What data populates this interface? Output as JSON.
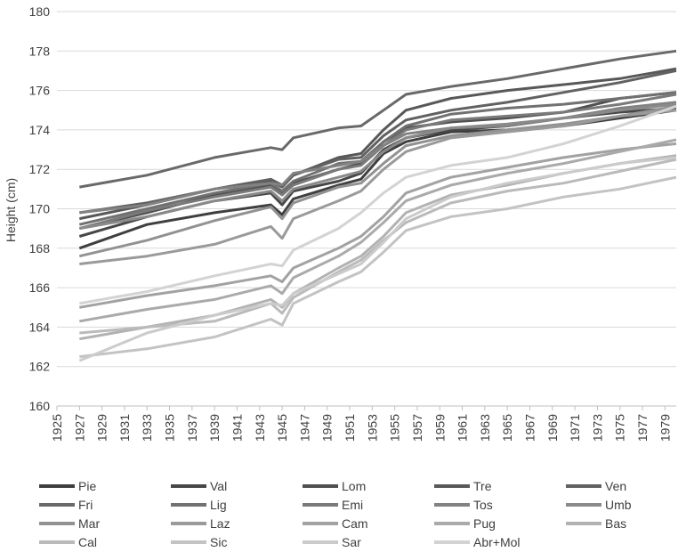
{
  "chart_data": {
    "type": "line",
    "title": "",
    "xlabel": "",
    "ylabel": "Height (cm)",
    "ylim": [
      160,
      180
    ],
    "yticks": [
      160,
      162,
      164,
      166,
      168,
      170,
      172,
      174,
      176,
      178,
      180
    ],
    "xlim": [
      1925,
      1980
    ],
    "xticks": [
      1925,
      1927,
      1929,
      1931,
      1933,
      1935,
      1937,
      1939,
      1941,
      1943,
      1945,
      1947,
      1949,
      1951,
      1953,
      1955,
      1957,
      1959,
      1961,
      1963,
      1965,
      1967,
      1969,
      1971,
      1973,
      1975,
      1977,
      1979
    ],
    "grid": "horizontal",
    "legend_position": "bottom",
    "x": [
      1927,
      1933,
      1939,
      1944,
      1945,
      1946,
      1950,
      1952,
      1954,
      1956,
      1960,
      1965,
      1970,
      1975,
      1980
    ],
    "series": [
      {
        "name": "Pie",
        "color": "#3f3f3f",
        "values": [
          168.0,
          169.2,
          169.8,
          170.2,
          169.7,
          170.5,
          171.2,
          171.5,
          172.8,
          173.4,
          173.9,
          174.0,
          174.2,
          174.6,
          175.0
        ]
      },
      {
        "name": "Val",
        "color": "#474747",
        "values": [
          168.6,
          169.6,
          170.4,
          170.8,
          170.2,
          170.9,
          171.4,
          171.8,
          173.0,
          173.6,
          174.0,
          174.2,
          174.6,
          174.9,
          175.1
        ]
      },
      {
        "name": "Lom",
        "color": "#4f4f4f",
        "values": [
          169.0,
          169.8,
          170.7,
          171.2,
          170.8,
          171.3,
          172.0,
          172.3,
          173.4,
          174.1,
          174.4,
          174.6,
          174.9,
          175.6,
          175.9
        ]
      },
      {
        "name": "Tre",
        "color": "#585858",
        "values": [
          169.5,
          170.2,
          171.0,
          171.4,
          171.1,
          171.7,
          172.6,
          172.8,
          174.0,
          175.0,
          175.6,
          176.0,
          176.3,
          176.6,
          177.1
        ]
      },
      {
        "name": "Ven",
        "color": "#616161",
        "values": [
          169.8,
          170.3,
          171.0,
          171.5,
          171.2,
          171.7,
          172.5,
          172.6,
          173.7,
          174.5,
          175.0,
          175.4,
          175.9,
          176.4,
          177.0
        ]
      },
      {
        "name": "Fri",
        "color": "#696969",
        "values": [
          171.1,
          171.7,
          172.6,
          173.1,
          173.0,
          173.6,
          174.1,
          174.2,
          175.0,
          175.8,
          176.2,
          176.6,
          177.1,
          177.6,
          178.0
        ]
      },
      {
        "name": "Lig",
        "color": "#717171",
        "values": [
          169.2,
          170.0,
          170.8,
          171.3,
          170.9,
          171.4,
          172.3,
          172.4,
          173.4,
          174.2,
          174.8,
          175.1,
          175.3,
          175.6,
          175.9
        ]
      },
      {
        "name": "Emi",
        "color": "#7a7a7a",
        "values": [
          169.0,
          169.9,
          170.6,
          171.1,
          170.7,
          171.2,
          172.0,
          172.2,
          173.2,
          174.0,
          174.5,
          174.7,
          174.9,
          175.3,
          175.8
        ]
      },
      {
        "name": "Tos",
        "color": "#828282",
        "values": [
          169.8,
          170.2,
          171.0,
          171.3,
          171.2,
          171.8,
          172.2,
          172.4,
          173.2,
          173.8,
          174.1,
          174.2,
          174.6,
          175.1,
          175.4
        ]
      },
      {
        "name": "Umb",
        "color": "#8a8a8a",
        "values": [
          169.0,
          169.6,
          170.4,
          170.9,
          170.4,
          171.0,
          171.6,
          171.9,
          172.9,
          173.6,
          174.1,
          174.3,
          174.6,
          175.0,
          175.3
        ]
      },
      {
        "name": "Mar",
        "color": "#929292",
        "values": [
          167.6,
          168.4,
          169.4,
          170.1,
          169.5,
          170.3,
          171.1,
          171.3,
          172.3,
          173.2,
          173.7,
          174.0,
          174.3,
          174.7,
          175.2
        ]
      },
      {
        "name": "Laz",
        "color": "#9a9a9a",
        "values": [
          167.2,
          167.6,
          168.2,
          169.1,
          168.5,
          169.5,
          170.4,
          170.9,
          172.0,
          172.9,
          173.6,
          173.9,
          174.2,
          174.7,
          175.0
        ]
      },
      {
        "name": "Cam",
        "color": "#a2a2a2",
        "values": [
          165.0,
          165.6,
          166.1,
          166.6,
          166.3,
          167.0,
          168.0,
          168.6,
          169.6,
          170.8,
          171.6,
          172.1,
          172.6,
          173.0,
          173.3
        ]
      },
      {
        "name": "Pug",
        "color": "#aaaaaa",
        "values": [
          164.3,
          164.9,
          165.4,
          166.1,
          165.7,
          166.5,
          167.6,
          168.3,
          169.3,
          170.4,
          171.2,
          171.8,
          172.3,
          172.9,
          173.5
        ]
      },
      {
        "name": "Bas",
        "color": "#b2b2b2",
        "values": [
          163.4,
          164.0,
          164.6,
          165.4,
          165.0,
          165.7,
          167.0,
          167.6,
          168.6,
          169.8,
          170.7,
          171.2,
          171.8,
          172.3,
          172.7
        ]
      },
      {
        "name": "Cal",
        "color": "#bababa",
        "values": [
          163.7,
          164.0,
          164.3,
          165.2,
          164.7,
          165.5,
          166.8,
          167.4,
          168.4,
          169.3,
          170.3,
          170.9,
          171.3,
          171.9,
          172.5
        ]
      },
      {
        "name": "Sic",
        "color": "#c3c3c3",
        "values": [
          162.5,
          162.9,
          163.5,
          164.4,
          164.1,
          165.2,
          166.3,
          166.8,
          167.8,
          168.9,
          169.6,
          170.0,
          170.6,
          171.0,
          171.6
        ]
      },
      {
        "name": "Sar",
        "color": "#cbcbcb",
        "values": [
          162.3,
          163.7,
          164.6,
          165.2,
          165.1,
          165.7,
          166.7,
          167.2,
          168.3,
          169.5,
          170.6,
          171.3,
          171.8,
          172.3,
          172.6
        ]
      },
      {
        "name": "Abr+Mol",
        "color": "#d3d3d3",
        "values": [
          165.2,
          165.8,
          166.6,
          167.2,
          167.1,
          167.9,
          169.0,
          169.8,
          170.8,
          171.6,
          172.2,
          172.6,
          173.3,
          174.2,
          175.2
        ]
      }
    ]
  }
}
